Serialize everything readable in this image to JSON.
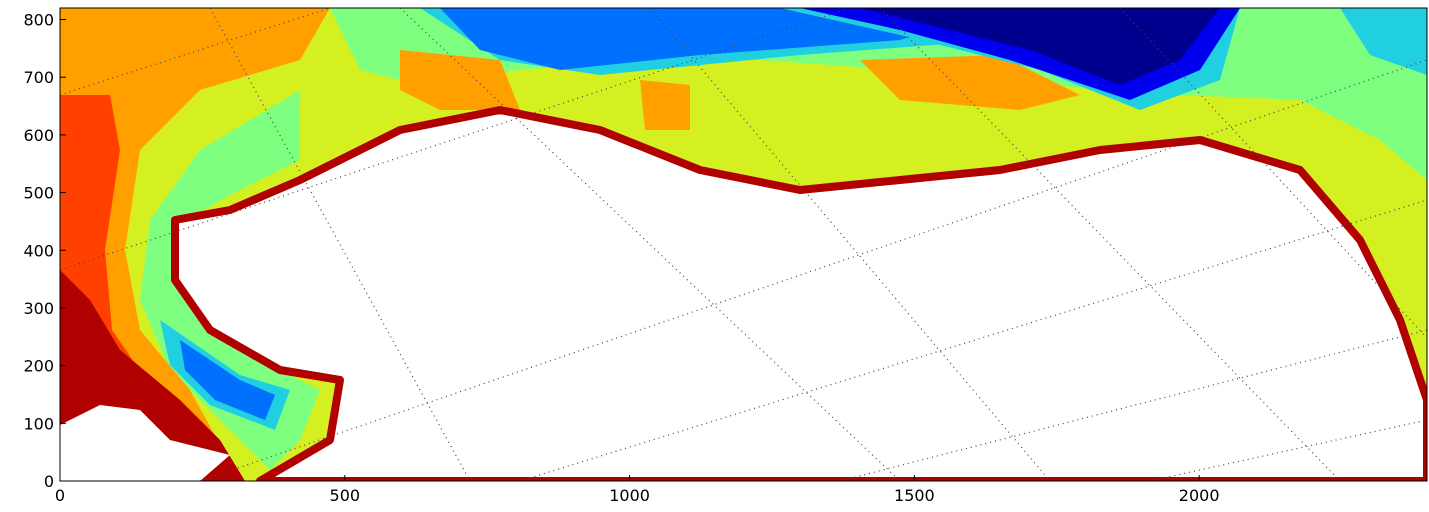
{
  "chart_data": {
    "type": "contour",
    "xlim": [
      0,
      2400
    ],
    "ylim": [
      0,
      820
    ],
    "xticks": [
      0,
      500,
      1000,
      1500,
      2000
    ],
    "yticks": [
      0,
      100,
      200,
      300,
      400,
      500,
      600,
      700,
      800
    ],
    "colors": [
      "#00008f",
      "#0000ef",
      "#0070ff",
      "#20d0e0",
      "#7fff7f",
      "#d4f020",
      "#ffa000",
      "#ff4000",
      "#b00000"
    ]
  }
}
